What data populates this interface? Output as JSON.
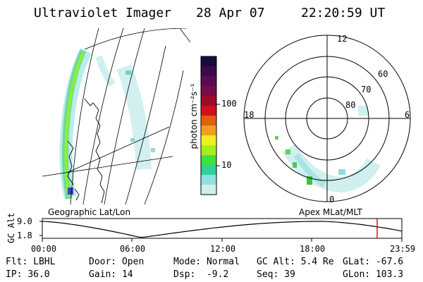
{
  "header": {
    "instrument": "Ultraviolet Imager",
    "date": "28 Apr 07",
    "time": "22:20:59 UT"
  },
  "colorbar": {
    "unit_label": "photon cm⁻²s⁻¹",
    "ticks": [
      "100",
      "10"
    ],
    "colors": [
      "#1a0a3a",
      "#3b0a4a",
      "#5a0a55",
      "#7a0a4a",
      "#a00a2a",
      "#d4101a",
      "#e06010",
      "#f0a020",
      "#f0f020",
      "#a0f020",
      "#40e040",
      "#30d0a0",
      "#90e0e0",
      "#d0f0f0"
    ]
  },
  "geo_panel": {
    "label": "Geographic Lat/Lon"
  },
  "polar_panel": {
    "label": "Apex MLat/MLT",
    "mlt_labels": [
      "12",
      "18",
      "6",
      "0"
    ],
    "lat_labels": [
      "60",
      "70",
      "80"
    ]
  },
  "timeline": {
    "y_axis_label": "GC Alt",
    "y_ticks": [
      "9.0",
      "1.8"
    ],
    "x_ticks": [
      "00:00",
      "06:00",
      "12:00",
      "18:00",
      "23:59"
    ],
    "marker_time": "22:20:59",
    "marker_color": "#e00000"
  },
  "status": {
    "row1": [
      {
        "label": "Flt:",
        "value": "LBHL"
      },
      {
        "label": "Door:",
        "value": "Open"
      },
      {
        "label": "Mode:",
        "value": "Normal"
      },
      {
        "label": "GC Alt:",
        "value": "5.4 Re"
      },
      {
        "label": "GLat:",
        "value": "-67.6"
      }
    ],
    "row2": [
      {
        "label": "IP:",
        "value": "36.0"
      },
      {
        "label": "Gain:",
        "value": "14"
      },
      {
        "label": "Dsp:",
        "value": "-9.2"
      },
      {
        "label": "Seq:",
        "value": "39"
      },
      {
        "label": "GLon:",
        "value": "103.3"
      }
    ]
  }
}
